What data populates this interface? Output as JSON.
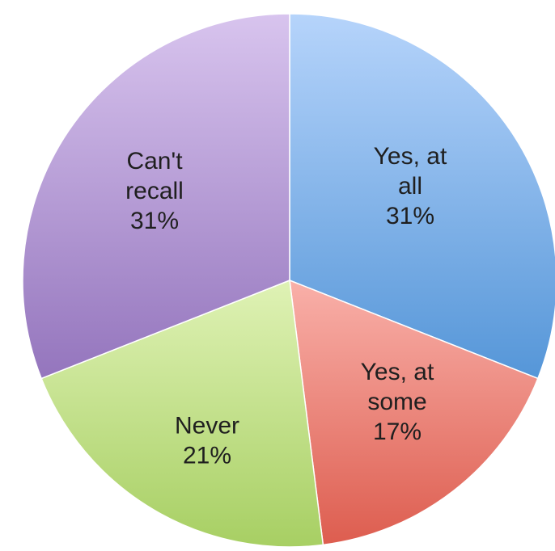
{
  "chart_data": {
    "type": "pie",
    "title": "",
    "start_angle_deg": 0,
    "direction": "clockwise",
    "slices": [
      {
        "label_lines": [
          "Yes, at",
          "all"
        ],
        "percent_label": "31%",
        "value": 31,
        "color_light": "#b6d4fb",
        "color_dark": "#5596d8"
      },
      {
        "label_lines": [
          "Yes, at",
          "some"
        ],
        "percent_label": "17%",
        "value": 17,
        "color_light": "#f9b0a9",
        "color_dark": "#dd5d4f"
      },
      {
        "label_lines": [
          "Never"
        ],
        "percent_label": "21%",
        "value": 21,
        "color_light": "#dff2b5",
        "color_dark": "#a7cf63"
      },
      {
        "label_lines": [
          "Can't",
          "recall"
        ],
        "percent_label": "31%",
        "value": 31,
        "color_light": "#d8c4ee",
        "color_dark": "#9475bd"
      }
    ]
  }
}
